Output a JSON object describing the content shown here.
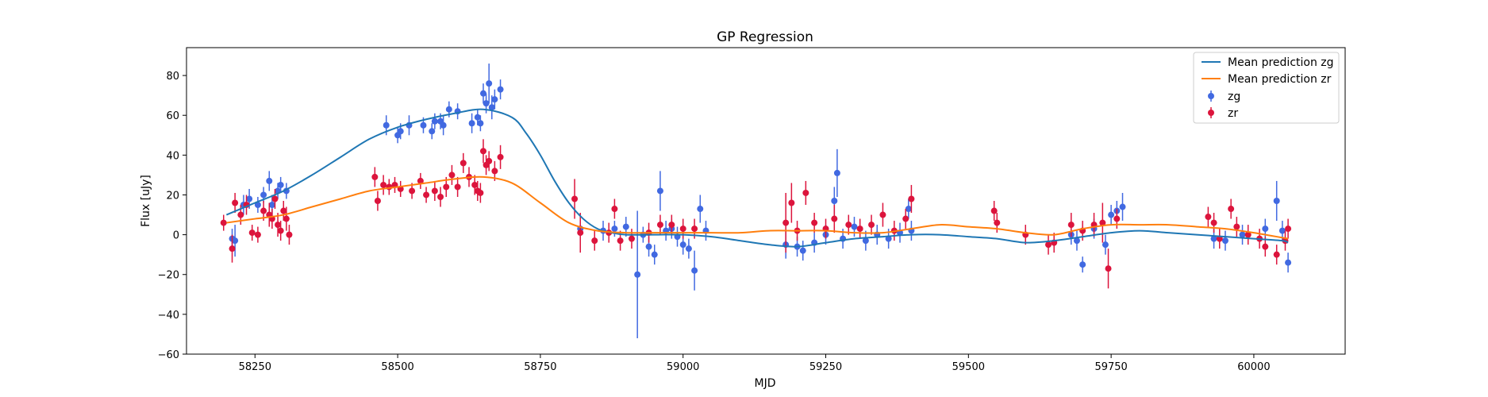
{
  "chart_data": {
    "type": "scatter",
    "title": "GP Regression",
    "xlabel": "MJD",
    "ylabel": "Flux [uJy]",
    "xlim": [
      58130,
      60160
    ],
    "ylim": [
      -60,
      94
    ],
    "xticks": [
      58250,
      58500,
      58750,
      59000,
      59250,
      59500,
      59750,
      60000
    ],
    "yticks": [
      -60,
      -40,
      -20,
      0,
      20,
      40,
      60,
      80
    ],
    "legend_position": "top-right",
    "series": [
      {
        "name": "Mean prediction zg",
        "kind": "line",
        "color": "#1f77b4",
        "x": [
          58200,
          58250,
          58300,
          58350,
          58400,
          58450,
          58500,
          58550,
          58600,
          58650,
          58700,
          58725,
          58750,
          58775,
          58800,
          58825,
          58850,
          58875,
          58900,
          58950,
          59000,
          59050,
          59100,
          59150,
          59200,
          59250,
          59300,
          59350,
          59400,
          59450,
          59500,
          59550,
          59600,
          59650,
          59700,
          59750,
          59800,
          59850,
          59900,
          59950,
          60000,
          60050,
          60060
        ],
        "values": [
          10,
          16,
          22,
          30,
          39,
          48,
          54,
          58,
          61,
          63,
          59,
          51,
          40,
          27,
          16,
          8,
          3,
          1,
          0,
          0,
          0,
          -1,
          -3,
          -5,
          -6,
          -4,
          -2,
          -1,
          0,
          0,
          -1,
          -2,
          -4,
          -3,
          -1,
          1,
          2,
          1,
          0,
          -1,
          -2,
          -3,
          -4
        ]
      },
      {
        "name": "Mean prediction zr",
        "kind": "line",
        "color": "#ff7f0e",
        "x": [
          58200,
          58250,
          58300,
          58350,
          58400,
          58450,
          58500,
          58550,
          58600,
          58650,
          58700,
          58750,
          58800,
          58850,
          58900,
          58950,
          59000,
          59050,
          59100,
          59150,
          59200,
          59250,
          59300,
          59350,
          59400,
          59450,
          59500,
          59550,
          59600,
          59650,
          59700,
          59750,
          59800,
          59850,
          59900,
          59950,
          60000,
          60060
        ],
        "values": [
          6,
          8,
          10,
          14,
          18,
          22,
          24,
          26,
          28,
          29,
          26,
          16,
          6,
          2,
          1,
          1,
          1,
          1,
          1,
          2,
          2,
          2,
          1,
          1,
          3,
          5,
          4,
          3,
          1,
          0,
          3,
          5,
          5,
          5,
          4,
          3,
          1,
          -2
        ]
      },
      {
        "name": "zg",
        "kind": "errorbar",
        "color": "#4169e1",
        "x": [
          58210,
          58215,
          58230,
          58240,
          58255,
          58265,
          58275,
          58280,
          58290,
          58295,
          58305,
          58480,
          58500,
          58505,
          58520,
          58545,
          58560,
          58565,
          58575,
          58580,
          58590,
          58605,
          58630,
          58640,
          58645,
          58650,
          58655,
          58660,
          58665,
          58670,
          58680,
          58820,
          58860,
          58880,
          58900,
          58920,
          58930,
          58940,
          58950,
          58960,
          58970,
          58980,
          58990,
          59000,
          59010,
          59020,
          59030,
          59040,
          59180,
          59200,
          59210,
          59230,
          59250,
          59265,
          59270,
          59280,
          59300,
          59320,
          59340,
          59360,
          59380,
          59395,
          59400,
          59680,
          59690,
          59700,
          59720,
          59740,
          59750,
          59760,
          59770,
          59930,
          59950,
          59980,
          60020,
          60040,
          60050,
          60060
        ],
        "values": [
          -2,
          -3,
          15,
          18,
          15,
          20,
          27,
          15,
          22,
          25,
          22,
          55,
          50,
          52,
          55,
          55,
          52,
          57,
          57,
          55,
          63,
          62,
          56,
          59,
          56,
          71,
          66,
          76,
          64,
          68,
          73,
          3,
          2,
          3,
          4,
          -20,
          0,
          -6,
          -10,
          22,
          2,
          3,
          -1,
          -5,
          -7,
          -18,
          13,
          2,
          -5,
          -6,
          -8,
          -4,
          0,
          17,
          31,
          -2,
          4,
          -3,
          0,
          -2,
          1,
          13,
          2,
          0,
          -3,
          -15,
          3,
          -5,
          10,
          12,
          14,
          -2,
          -3,
          0,
          3,
          17,
          2,
          -14
        ],
        "errors": [
          5,
          8,
          5,
          5,
          4,
          4,
          5,
          5,
          4,
          4,
          4,
          5,
          4,
          4,
          5,
          4,
          4,
          4,
          4,
          5,
          4,
          4,
          5,
          4,
          4,
          5,
          5,
          10,
          6,
          5,
          5,
          4,
          5,
          4,
          5,
          32,
          4,
          5,
          5,
          10,
          5,
          5,
          5,
          5,
          5,
          10,
          7,
          5,
          7,
          5,
          5,
          5,
          5,
          7,
          12,
          5,
          5,
          5,
          5,
          5,
          5,
          5,
          5,
          5,
          5,
          4,
          5,
          5,
          5,
          5,
          7,
          5,
          5,
          5,
          5,
          10,
          5,
          5
        ]
      },
      {
        "name": "zr",
        "kind": "errorbar",
        "color": "#dc143c",
        "x": [
          58195,
          58210,
          58215,
          58225,
          58235,
          58245,
          58255,
          58265,
          58275,
          58280,
          58285,
          58290,
          58295,
          58300,
          58305,
          58310,
          58460,
          58465,
          58475,
          58485,
          58495,
          58505,
          58525,
          58540,
          58550,
          58565,
          58575,
          58585,
          58595,
          58605,
          58615,
          58625,
          58635,
          58640,
          58645,
          58650,
          58655,
          58660,
          58670,
          58680,
          58810,
          58820,
          58845,
          58870,
          58880,
          58890,
          58910,
          58940,
          58960,
          58980,
          59000,
          59020,
          59180,
          59190,
          59200,
          59215,
          59230,
          59250,
          59265,
          59290,
          59310,
          59330,
          59350,
          59370,
          59390,
          59400,
          59545,
          59550,
          59600,
          59640,
          59650,
          59680,
          59700,
          59720,
          59735,
          59745,
          59760,
          59920,
          59930,
          59940,
          59960,
          59970,
          59990,
          60010,
          60020,
          60040,
          60055,
          60060
        ],
        "values": [
          6,
          -7,
          16,
          10,
          15,
          1,
          0,
          12,
          10,
          8,
          18,
          5,
          2,
          12,
          8,
          0,
          29,
          17,
          25,
          24,
          25,
          23,
          22,
          27,
          20,
          22,
          19,
          24,
          30,
          24,
          36,
          29,
          25,
          22,
          21,
          42,
          35,
          37,
          32,
          39,
          18,
          1,
          -3,
          1,
          13,
          -3,
          -2,
          1,
          5,
          5,
          3,
          3,
          6,
          16,
          2,
          21,
          6,
          3,
          8,
          5,
          3,
          5,
          10,
          2,
          8,
          18,
          12,
          6,
          0,
          -5,
          -4,
          5,
          2,
          5,
          6,
          -17,
          8,
          9,
          6,
          -2,
          13,
          4,
          0,
          -2,
          -6,
          -10,
          -3,
          3
        ],
        "errors": [
          4,
          7,
          5,
          5,
          5,
          4,
          4,
          5,
          6,
          5,
          5,
          6,
          5,
          5,
          6,
          5,
          5,
          5,
          5,
          4,
          4,
          4,
          4,
          4,
          4,
          5,
          5,
          5,
          5,
          5,
          5,
          5,
          5,
          5,
          5,
          6,
          5,
          5,
          5,
          6,
          10,
          10,
          5,
          5,
          5,
          5,
          5,
          5,
          5,
          5,
          5,
          5,
          15,
          10,
          5,
          6,
          5,
          5,
          7,
          5,
          5,
          5,
          6,
          5,
          5,
          7,
          5,
          5,
          5,
          5,
          5,
          6,
          5,
          6,
          10,
          10,
          5,
          5,
          5,
          5,
          5,
          5,
          5,
          5,
          5,
          5,
          5,
          5
        ]
      }
    ]
  }
}
